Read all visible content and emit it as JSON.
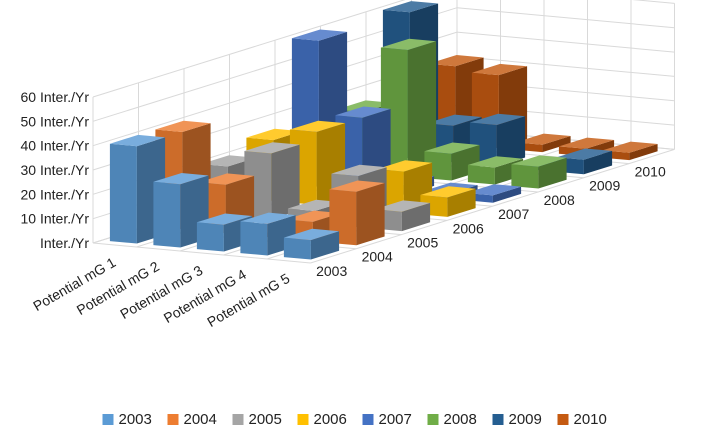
{
  "chart_data": {
    "type": "bar",
    "subtype": "3d-column",
    "title": "",
    "xlabel": "",
    "ylabel": "",
    "ylim": [
      0,
      60
    ],
    "yticks": [
      "Inter./Yr",
      "10 Inter./Yr",
      "20 Inter./Yr",
      "30 Inter./Yr",
      "40 Inter./Yr",
      "50 Inter./Yr",
      "60 Inter./Yr"
    ],
    "categories": [
      "Potential mG 1",
      "Potential mG 2",
      "Potential mG 3",
      "Potential mG 4",
      "Potential mG 5"
    ],
    "depth_labels": [
      "2003",
      "2004",
      "2005",
      "2006",
      "2007",
      "2008",
      "2009",
      "2010"
    ],
    "legend_position": "bottom",
    "grid": true,
    "series": [
      {
        "name": "2003",
        "color": "#5B9BD5",
        "values": [
          40,
          26,
          11,
          13,
          8
        ]
      },
      {
        "name": "2004",
        "color": "#ED7D31",
        "values": [
          40,
          20,
          2,
          8,
          22
        ]
      },
      {
        "name": "2005",
        "color": "#A5A5A5",
        "values": [
          20,
          27,
          5,
          21,
          8
        ]
      },
      {
        "name": "2006",
        "color": "#FFC000",
        "values": [
          25,
          30,
          8,
          17,
          8
        ]
      },
      {
        "name": "2007",
        "color": "#4472C4",
        "values": [
          60,
          30,
          4,
          2,
          3
        ]
      },
      {
        "name": "2008",
        "color": "#70AD47",
        "values": [
          25,
          52,
          11,
          7,
          9
        ]
      },
      {
        "name": "2009",
        "color": "#255E91",
        "values": [
          60,
          15,
          17,
          1,
          6
        ]
      },
      {
        "name": "2010",
        "color": "#C55A11",
        "values": [
          32,
          30,
          3,
          3,
          3
        ]
      }
    ]
  }
}
